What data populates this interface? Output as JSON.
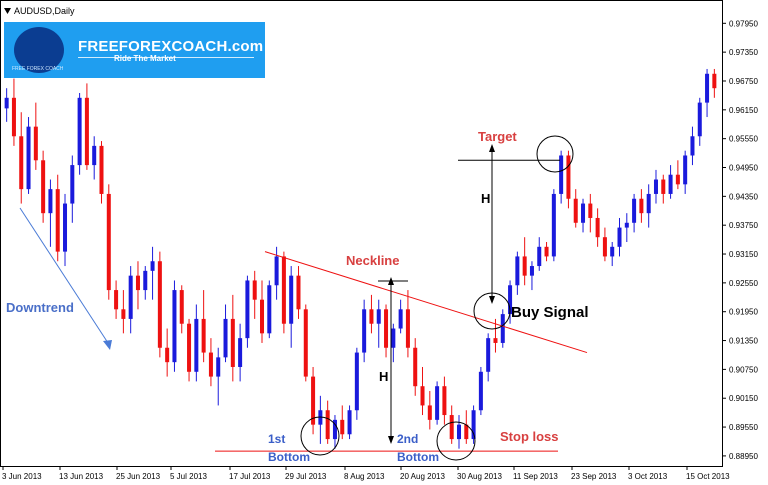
{
  "window": {
    "title": "AUDUSD,Daily"
  },
  "logo": {
    "brand": "FREEFOREXCOACH.com",
    "tagline": "Ride The Market",
    "small_text": "FREE FOREX COACH"
  },
  "colors": {
    "bull": "#1a1adc",
    "bear": "#ee1111",
    "annotation_red": "#d81b1b",
    "label_red": "#d84040",
    "label_blue": "#3a5ec8",
    "axis": "#000000",
    "logo_bg": "#1f9ef0"
  },
  "chart_data": {
    "type": "candlestick",
    "symbol": "AUDUSD",
    "timeframe": "Daily",
    "ylim": [
      0.8874,
      0.9831
    ],
    "y_ticks": [
      "0.97950",
      "0.97350",
      "0.96750",
      "0.96150",
      "0.95550",
      "0.94950",
      "0.94350",
      "0.93750",
      "0.93150",
      "0.92550",
      "0.91950",
      "0.91350",
      "0.90750",
      "0.90150",
      "0.89550",
      "0.88950"
    ],
    "x_ticks": [
      "3 Jun 2013",
      "13 Jun 2013",
      "25 Jun 2013",
      "5 Jul 2013",
      "17 Jul 2013",
      "29 Jul 2013",
      "8 Aug 2013",
      "20 Aug 2013",
      "30 Aug 2013",
      "11 Sep 2013",
      "23 Sep 2013",
      "3 Oct 2013",
      "15 Oct 2013"
    ],
    "ohlc": [
      [
        0.9618,
        0.966,
        0.959,
        0.964
      ],
      [
        0.964,
        0.968,
        0.954,
        0.956
      ],
      [
        0.956,
        0.961,
        0.942,
        0.945
      ],
      [
        0.945,
        0.96,
        0.944,
        0.958
      ],
      [
        0.958,
        0.963,
        0.949,
        0.951
      ],
      [
        0.951,
        0.953,
        0.938,
        0.94
      ],
      [
        0.94,
        0.947,
        0.933,
        0.945
      ],
      [
        0.945,
        0.948,
        0.93,
        0.932
      ],
      [
        0.932,
        0.944,
        0.929,
        0.942
      ],
      [
        0.942,
        0.952,
        0.938,
        0.95
      ],
      [
        0.95,
        0.965,
        0.948,
        0.964
      ],
      [
        0.964,
        0.967,
        0.949,
        0.95
      ],
      [
        0.95,
        0.956,
        0.947,
        0.954
      ],
      [
        0.954,
        0.955,
        0.942,
        0.944
      ],
      [
        0.944,
        0.946,
        0.922,
        0.924
      ],
      [
        0.924,
        0.926,
        0.918,
        0.92
      ],
      [
        0.92,
        0.924,
        0.915,
        0.918
      ],
      [
        0.918,
        0.929,
        0.915,
        0.927
      ],
      [
        0.927,
        0.93,
        0.92,
        0.924
      ],
      [
        0.924,
        0.929,
        0.922,
        0.928
      ],
      [
        0.928,
        0.933,
        0.922,
        0.93
      ],
      [
        0.93,
        0.932,
        0.91,
        0.912
      ],
      [
        0.912,
        0.916,
        0.906,
        0.909
      ],
      [
        0.909,
        0.926,
        0.907,
        0.924
      ],
      [
        0.924,
        0.925,
        0.915,
        0.917
      ],
      [
        0.917,
        0.918,
        0.905,
        0.907
      ],
      [
        0.907,
        0.921,
        0.905,
        0.918
      ],
      [
        0.918,
        0.924,
        0.909,
        0.911
      ],
      [
        0.911,
        0.914,
        0.904,
        0.906
      ],
      [
        0.906,
        0.912,
        0.9,
        0.91
      ],
      [
        0.91,
        0.921,
        0.909,
        0.918
      ],
      [
        0.918,
        0.923,
        0.905,
        0.908
      ],
      [
        0.908,
        0.917,
        0.905,
        0.914
      ],
      [
        0.914,
        0.927,
        0.912,
        0.926
      ],
      [
        0.926,
        0.928,
        0.918,
        0.922
      ],
      [
        0.922,
        0.926,
        0.913,
        0.915
      ],
      [
        0.915,
        0.926,
        0.914,
        0.925
      ],
      [
        0.925,
        0.933,
        0.922,
        0.931
      ],
      [
        0.931,
        0.932,
        0.915,
        0.917
      ],
      [
        0.917,
        0.929,
        0.912,
        0.927
      ],
      [
        0.927,
        0.929,
        0.918,
        0.92
      ],
      [
        0.92,
        0.921,
        0.905,
        0.906
      ],
      [
        0.906,
        0.908,
        0.894,
        0.896
      ],
      [
        0.896,
        0.902,
        0.892,
        0.899
      ],
      [
        0.899,
        0.901,
        0.892,
        0.893
      ],
      [
        0.893,
        0.898,
        0.891,
        0.897
      ],
      [
        0.897,
        0.9,
        0.893,
        0.894
      ],
      [
        0.894,
        0.9,
        0.893,
        0.899
      ],
      [
        0.899,
        0.912,
        0.897,
        0.911
      ],
      [
        0.911,
        0.922,
        0.909,
        0.92
      ],
      [
        0.92,
        0.923,
        0.915,
        0.917
      ],
      [
        0.917,
        0.922,
        0.912,
        0.92
      ],
      [
        0.92,
        0.921,
        0.91,
        0.912
      ],
      [
        0.912,
        0.917,
        0.909,
        0.916
      ],
      [
        0.916,
        0.922,
        0.915,
        0.92
      ],
      [
        0.92,
        0.924,
        0.91,
        0.912
      ],
      [
        0.912,
        0.914,
        0.902,
        0.904
      ],
      [
        0.904,
        0.908,
        0.898,
        0.9
      ],
      [
        0.9,
        0.903,
        0.895,
        0.897
      ],
      [
        0.897,
        0.905,
        0.896,
        0.904
      ],
      [
        0.904,
        0.906,
        0.896,
        0.898
      ],
      [
        0.898,
        0.9,
        0.892,
        0.893
      ],
      [
        0.893,
        0.898,
        0.891,
        0.896
      ],
      [
        0.896,
        0.899,
        0.892,
        0.893
      ],
      [
        0.893,
        0.9,
        0.892,
        0.899
      ],
      [
        0.899,
        0.908,
        0.898,
        0.907
      ],
      [
        0.907,
        0.915,
        0.905,
        0.914
      ],
      [
        0.914,
        0.918,
        0.911,
        0.913
      ],
      [
        0.913,
        0.92,
        0.912,
        0.919
      ],
      [
        0.919,
        0.926,
        0.917,
        0.925
      ],
      [
        0.925,
        0.932,
        0.923,
        0.931
      ],
      [
        0.931,
        0.935,
        0.925,
        0.927
      ],
      [
        0.927,
        0.93,
        0.924,
        0.929
      ],
      [
        0.929,
        0.935,
        0.928,
        0.933
      ],
      [
        0.933,
        0.934,
        0.93,
        0.931
      ],
      [
        0.931,
        0.945,
        0.93,
        0.944
      ],
      [
        0.944,
        0.953,
        0.942,
        0.952
      ],
      [
        0.952,
        0.953,
        0.941,
        0.943
      ],
      [
        0.943,
        0.945,
        0.937,
        0.938
      ],
      [
        0.938,
        0.943,
        0.936,
        0.942
      ],
      [
        0.942,
        0.944,
        0.936,
        0.939
      ],
      [
        0.939,
        0.941,
        0.933,
        0.935
      ],
      [
        0.935,
        0.937,
        0.93,
        0.931
      ],
      [
        0.931,
        0.934,
        0.929,
        0.933
      ],
      [
        0.933,
        0.939,
        0.931,
        0.937
      ],
      [
        0.937,
        0.94,
        0.934,
        0.938
      ],
      [
        0.938,
        0.944,
        0.936,
        0.943
      ],
      [
        0.943,
        0.945,
        0.938,
        0.94
      ],
      [
        0.94,
        0.946,
        0.937,
        0.944
      ],
      [
        0.944,
        0.949,
        0.942,
        0.947
      ],
      [
        0.947,
        0.948,
        0.942,
        0.944
      ],
      [
        0.944,
        0.95,
        0.943,
        0.948
      ],
      [
        0.948,
        0.951,
        0.945,
        0.946
      ],
      [
        0.946,
        0.953,
        0.944,
        0.952
      ],
      [
        0.952,
        0.958,
        0.95,
        0.956
      ],
      [
        0.956,
        0.964,
        0.954,
        0.963
      ],
      [
        0.963,
        0.97,
        0.96,
        0.969
      ],
      [
        0.969,
        0.97,
        0.964,
        0.966
      ]
    ],
    "annotations": {
      "trend_label": "Downtrend",
      "neckline_label": "Neckline",
      "target_label": "Target",
      "buy_signal_label": "Buy Signal",
      "stop_loss_label": "Stop loss",
      "height_label": "H",
      "first_bottom_line1": "1st",
      "first_bottom_line2": "Bottom",
      "second_bottom_line1": "2nd",
      "second_bottom_line2": "Bottom",
      "neckline_start": [
        0.932,
        0.911
      ],
      "stop_loss_price": 0.8905,
      "target_price": 0.951
    }
  }
}
